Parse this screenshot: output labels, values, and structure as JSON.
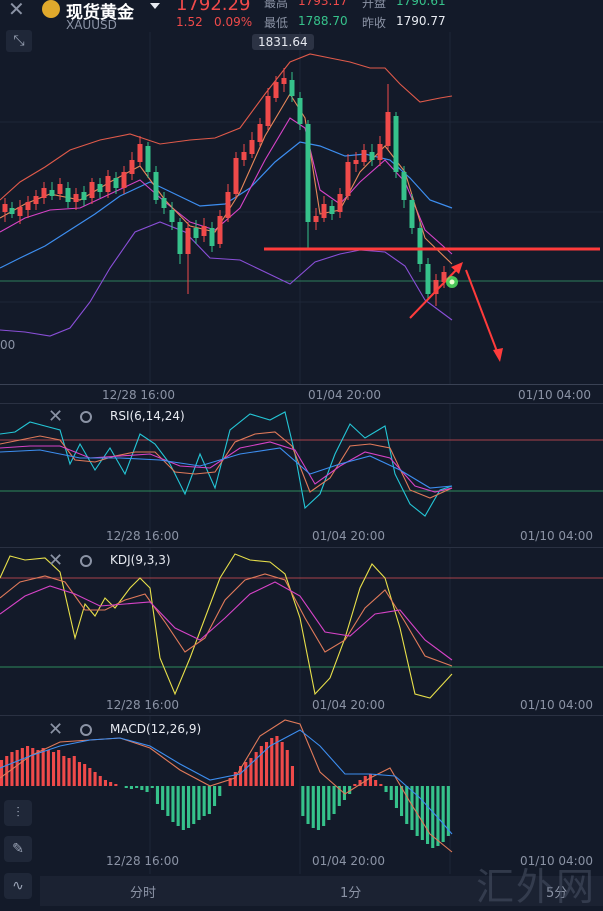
{
  "header": {
    "title": "现货黄金",
    "symbol": "XAUUSD",
    "price": "1792.29",
    "change": "1.52",
    "change_pct": "0.09%",
    "high_label": "最高",
    "high_value": "1793.17",
    "open_label": "开盘",
    "open_value": "1790.61",
    "low_label": "最低",
    "low_value": "1788.70",
    "prev_close_label": "昨收",
    "prev_close_value": "1790.77"
  },
  "main_chart": {
    "peak_label": "1831.64",
    "left_axis_value": "00",
    "x_labels": [
      "12/28 16:00",
      "01/04 20:00",
      "01/10 04:00"
    ]
  },
  "panels": [
    {
      "name": "RSI(6,14,24)",
      "x_labels": [
        "12/28 16:00",
        "01/04 20:00",
        "01/10 04:00"
      ]
    },
    {
      "name": "KDJ(9,3,3)",
      "x_labels": [
        "12/28 16:00",
        "01/04 20:00",
        "01/10 04:00"
      ]
    },
    {
      "name": "MACD(12,26,9)",
      "x_labels": [
        "12/28 16:00",
        "01/04 20:00",
        "01/10 04:00"
      ]
    }
  ],
  "tabs": [
    "分时",
    "1分",
    "5分"
  ],
  "watermark": "汇外网",
  "icons": {
    "close": "close-icon",
    "expand": "expand-icon",
    "gold": "gold-coin-icon",
    "dropdown": "caret-down-icon",
    "gear": "gear-icon"
  },
  "colors": {
    "up": "#ef4a4a",
    "down": "#36c28b",
    "resistance": "#ff3b3b"
  }
}
